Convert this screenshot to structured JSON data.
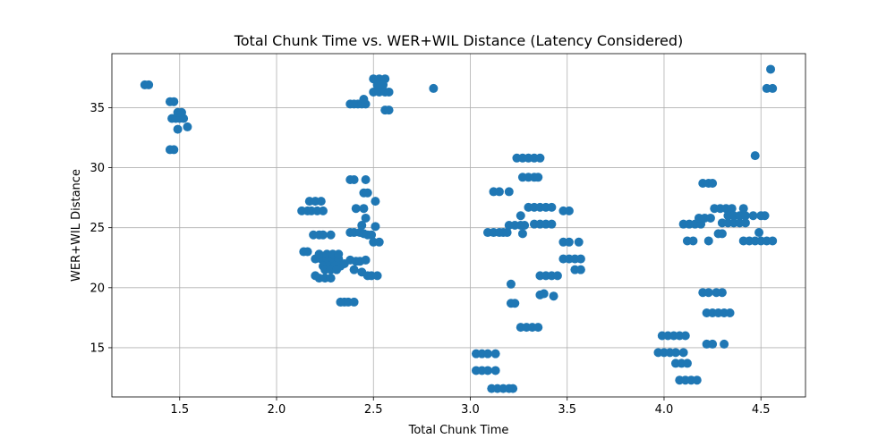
{
  "chart_data": {
    "type": "scatter",
    "title": "Total Chunk Time vs. WER+WIL Distance (Latency Considered)",
    "xlabel": "Total Chunk Time",
    "ylabel": "WER+WIL Distance",
    "xlim": [
      1.15,
      4.73
    ],
    "ylim": [
      10.9,
      39.5
    ],
    "xticks": [
      1.5,
      2.0,
      2.5,
      3.0,
      3.5,
      4.0,
      4.5
    ],
    "yticks": [
      15,
      20,
      25,
      30,
      35
    ],
    "grid": true,
    "color": "#1f77b4",
    "points": [
      [
        1.32,
        36.9
      ],
      [
        1.34,
        36.9
      ],
      [
        1.45,
        35.5
      ],
      [
        1.47,
        35.5
      ],
      [
        1.46,
        34.1
      ],
      [
        1.48,
        34.1
      ],
      [
        1.5,
        34.1
      ],
      [
        1.52,
        34.1
      ],
      [
        1.49,
        34.6
      ],
      [
        1.51,
        34.6
      ],
      [
        1.49,
        33.2
      ],
      [
        1.54,
        33.4
      ],
      [
        1.45,
        31.5
      ],
      [
        1.47,
        31.5
      ],
      [
        2.13,
        26.4
      ],
      [
        2.16,
        26.4
      ],
      [
        2.18,
        26.4
      ],
      [
        2.21,
        26.4
      ],
      [
        2.24,
        26.4
      ],
      [
        2.17,
        27.2
      ],
      [
        2.2,
        27.2
      ],
      [
        2.23,
        27.2
      ],
      [
        2.14,
        23.0
      ],
      [
        2.16,
        23.0
      ],
      [
        2.19,
        24.4
      ],
      [
        2.22,
        24.4
      ],
      [
        2.24,
        24.4
      ],
      [
        2.28,
        24.4
      ],
      [
        2.2,
        22.4
      ],
      [
        2.23,
        22.4
      ],
      [
        2.26,
        22.4
      ],
      [
        2.29,
        22.4
      ],
      [
        2.32,
        22.4
      ],
      [
        2.22,
        22.8
      ],
      [
        2.26,
        22.8
      ],
      [
        2.29,
        22.8
      ],
      [
        2.32,
        22.8
      ],
      [
        2.24,
        21.8
      ],
      [
        2.27,
        21.8
      ],
      [
        2.3,
        21.8
      ],
      [
        2.33,
        21.8
      ],
      [
        2.25,
        21.5
      ],
      [
        2.28,
        21.5
      ],
      [
        2.31,
        21.5
      ],
      [
        2.2,
        21.0
      ],
      [
        2.22,
        20.8
      ],
      [
        2.25,
        20.8
      ],
      [
        2.28,
        20.8
      ],
      [
        2.33,
        18.8
      ],
      [
        2.35,
        18.8
      ],
      [
        2.37,
        18.8
      ],
      [
        2.4,
        18.8
      ],
      [
        2.35,
        22.0
      ],
      [
        2.38,
        22.3
      ],
      [
        2.41,
        22.2
      ],
      [
        2.43,
        22.2
      ],
      [
        2.46,
        22.3
      ],
      [
        2.4,
        21.5
      ],
      [
        2.44,
        21.3
      ],
      [
        2.47,
        21.0
      ],
      [
        2.49,
        21.0
      ],
      [
        2.52,
        21.0
      ],
      [
        2.38,
        24.6
      ],
      [
        2.4,
        24.6
      ],
      [
        2.43,
        24.6
      ],
      [
        2.45,
        24.5
      ],
      [
        2.47,
        24.4
      ],
      [
        2.49,
        24.4
      ],
      [
        2.44,
        25.2
      ],
      [
        2.51,
        25.1
      ],
      [
        2.46,
        25.8
      ],
      [
        2.5,
        23.8
      ],
      [
        2.53,
        23.8
      ],
      [
        2.41,
        26.6
      ],
      [
        2.45,
        26.6
      ],
      [
        2.51,
        27.2
      ],
      [
        2.45,
        27.9
      ],
      [
        2.47,
        27.9
      ],
      [
        2.38,
        29.0
      ],
      [
        2.4,
        29.0
      ],
      [
        2.46,
        29.0
      ],
      [
        2.38,
        35.3
      ],
      [
        2.4,
        35.3
      ],
      [
        2.42,
        35.3
      ],
      [
        2.44,
        35.3
      ],
      [
        2.46,
        35.3
      ],
      [
        2.45,
        35.7
      ],
      [
        2.5,
        37.4
      ],
      [
        2.53,
        37.4
      ],
      [
        2.56,
        37.4
      ],
      [
        2.52,
        36.9
      ],
      [
        2.55,
        36.9
      ],
      [
        2.5,
        36.3
      ],
      [
        2.53,
        36.3
      ],
      [
        2.56,
        36.3
      ],
      [
        2.58,
        36.3
      ],
      [
        2.56,
        34.8
      ],
      [
        2.58,
        34.8
      ],
      [
        2.81,
        36.6
      ],
      [
        3.03,
        14.5
      ],
      [
        3.06,
        14.5
      ],
      [
        3.09,
        14.5
      ],
      [
        3.13,
        14.5
      ],
      [
        3.03,
        13.1
      ],
      [
        3.06,
        13.1
      ],
      [
        3.09,
        13.1
      ],
      [
        3.13,
        13.1
      ],
      [
        3.11,
        11.6
      ],
      [
        3.14,
        11.6
      ],
      [
        3.17,
        11.6
      ],
      [
        3.2,
        11.6
      ],
      [
        3.22,
        11.6
      ],
      [
        3.09,
        24.6
      ],
      [
        3.12,
        24.6
      ],
      [
        3.15,
        24.6
      ],
      [
        3.17,
        24.6
      ],
      [
        3.19,
        24.6
      ],
      [
        3.12,
        28.0
      ],
      [
        3.15,
        28.0
      ],
      [
        3.2,
        28.0
      ],
      [
        3.2,
        25.2
      ],
      [
        3.23,
        25.2
      ],
      [
        3.26,
        25.2
      ],
      [
        3.28,
        25.2
      ],
      [
        3.26,
        26.0
      ],
      [
        3.27,
        24.5
      ],
      [
        3.21,
        20.3
      ],
      [
        3.21,
        18.7
      ],
      [
        3.23,
        18.7
      ],
      [
        3.24,
        30.8
      ],
      [
        3.27,
        30.8
      ],
      [
        3.3,
        30.8
      ],
      [
        3.33,
        30.8
      ],
      [
        3.36,
        30.8
      ],
      [
        3.27,
        29.2
      ],
      [
        3.3,
        29.2
      ],
      [
        3.33,
        29.2
      ],
      [
        3.35,
        29.2
      ],
      [
        3.3,
        26.7
      ],
      [
        3.33,
        26.7
      ],
      [
        3.36,
        26.7
      ],
      [
        3.39,
        26.7
      ],
      [
        3.42,
        26.7
      ],
      [
        3.33,
        25.3
      ],
      [
        3.36,
        25.3
      ],
      [
        3.39,
        25.3
      ],
      [
        3.42,
        25.3
      ],
      [
        3.48,
        26.4
      ],
      [
        3.51,
        26.4
      ],
      [
        3.26,
        16.7
      ],
      [
        3.29,
        16.7
      ],
      [
        3.32,
        16.7
      ],
      [
        3.35,
        16.7
      ],
      [
        3.36,
        21.0
      ],
      [
        3.39,
        21.0
      ],
      [
        3.42,
        21.0
      ],
      [
        3.45,
        21.0
      ],
      [
        3.36,
        19.4
      ],
      [
        3.38,
        19.5
      ],
      [
        3.43,
        19.3
      ],
      [
        3.48,
        22.4
      ],
      [
        3.51,
        22.4
      ],
      [
        3.54,
        22.4
      ],
      [
        3.57,
        22.4
      ],
      [
        3.48,
        23.8
      ],
      [
        3.51,
        23.8
      ],
      [
        3.56,
        23.8
      ],
      [
        3.54,
        21.5
      ],
      [
        3.57,
        21.5
      ],
      [
        3.97,
        14.6
      ],
      [
        4.0,
        14.6
      ],
      [
        4.03,
        14.6
      ],
      [
        4.06,
        14.6
      ],
      [
        4.1,
        14.6
      ],
      [
        3.99,
        16.0
      ],
      [
        4.02,
        16.0
      ],
      [
        4.05,
        16.0
      ],
      [
        4.08,
        16.0
      ],
      [
        4.11,
        16.0
      ],
      [
        4.06,
        13.7
      ],
      [
        4.09,
        13.7
      ],
      [
        4.12,
        13.7
      ],
      [
        4.08,
        12.3
      ],
      [
        4.11,
        12.3
      ],
      [
        4.14,
        12.3
      ],
      [
        4.17,
        12.3
      ],
      [
        4.1,
        25.3
      ],
      [
        4.13,
        25.3
      ],
      [
        4.16,
        25.3
      ],
      [
        4.19,
        25.3
      ],
      [
        4.12,
        23.9
      ],
      [
        4.15,
        23.9
      ],
      [
        4.23,
        23.9
      ],
      [
        4.18,
        25.8
      ],
      [
        4.21,
        25.8
      ],
      [
        4.24,
        25.8
      ],
      [
        4.2,
        28.7
      ],
      [
        4.23,
        28.7
      ],
      [
        4.25,
        28.7
      ],
      [
        4.2,
        19.6
      ],
      [
        4.23,
        19.6
      ],
      [
        4.27,
        19.6
      ],
      [
        4.3,
        19.6
      ],
      [
        4.22,
        17.9
      ],
      [
        4.25,
        17.9
      ],
      [
        4.28,
        17.9
      ],
      [
        4.31,
        17.9
      ],
      [
        4.34,
        17.9
      ],
      [
        4.22,
        15.3
      ],
      [
        4.25,
        15.3
      ],
      [
        4.31,
        15.3
      ],
      [
        4.26,
        26.6
      ],
      [
        4.29,
        26.6
      ],
      [
        4.32,
        26.6
      ],
      [
        4.35,
        26.6
      ],
      [
        4.28,
        24.5
      ],
      [
        4.3,
        24.5
      ],
      [
        4.3,
        25.4
      ],
      [
        4.33,
        25.4
      ],
      [
        4.36,
        25.4
      ],
      [
        4.39,
        25.4
      ],
      [
        4.42,
        25.4
      ],
      [
        4.33,
        26.0
      ],
      [
        4.36,
        26.0
      ],
      [
        4.39,
        26.0
      ],
      [
        4.42,
        26.0
      ],
      [
        4.46,
        26.0
      ],
      [
        4.5,
        26.0
      ],
      [
        4.52,
        26.0
      ],
      [
        4.41,
        26.6
      ],
      [
        4.47,
        31.0
      ],
      [
        4.41,
        23.9
      ],
      [
        4.44,
        23.9
      ],
      [
        4.47,
        23.9
      ],
      [
        4.5,
        23.9
      ],
      [
        4.53,
        23.9
      ],
      [
        4.56,
        23.9
      ],
      [
        4.49,
        24.6
      ],
      [
        4.53,
        36.6
      ],
      [
        4.56,
        36.6
      ],
      [
        4.55,
        38.2
      ]
    ]
  }
}
